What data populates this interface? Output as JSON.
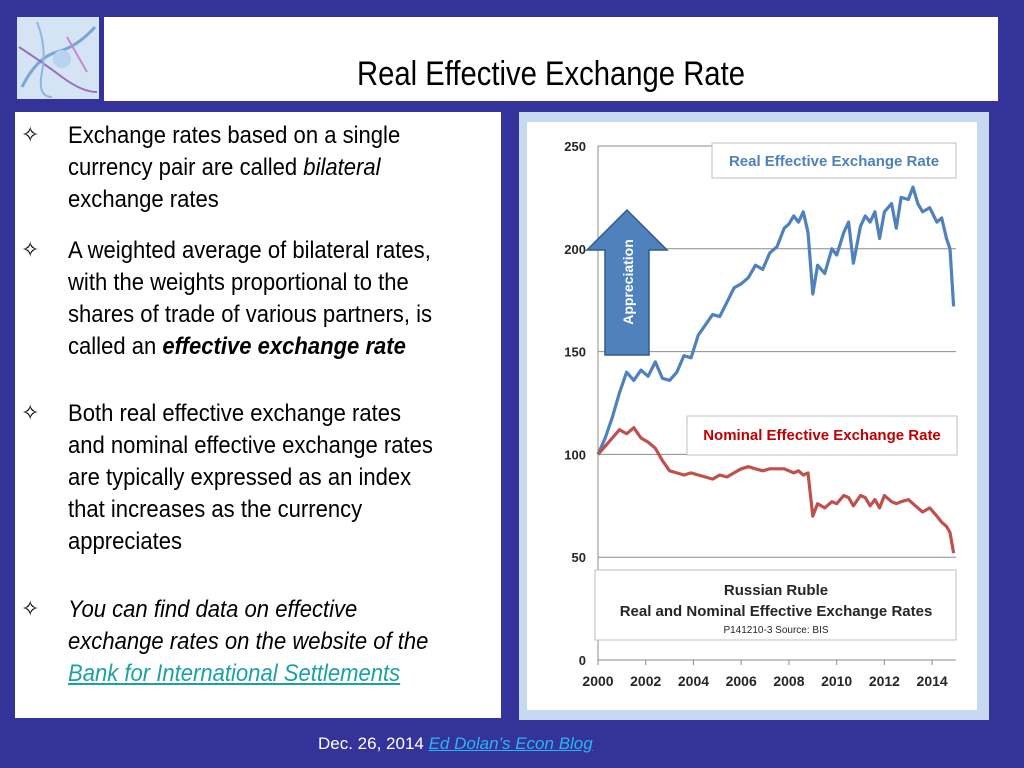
{
  "title": "Real Effective Exchange Rate",
  "bullets": [
    {
      "lines": [
        "Exchange rates based on a single",
        "currency pair are called ",
        "exchange rates"
      ],
      "italic_word": "bilateral"
    },
    {
      "lines": [
        "A weighted average of bilateral rates,",
        "with the weights proportional to the",
        "shares of trade of various partners, is",
        "called an "
      ],
      "bold_italic": "effective exchange rate"
    },
    {
      "lines": [
        "Both real effective exchange rates",
        "and nominal effective exchange rates",
        "are typically expressed as an index",
        "that increases as the currency",
        "appreciates"
      ]
    },
    {
      "lines": [
        "You can find data on effective",
        "exchange rates on the website of the"
      ],
      "link": "Bank for International Settlements"
    }
  ],
  "bullet_symbol": "✧",
  "footer": {
    "date": "Dec. 26, 2014",
    "link": "Ed Dolan’s Econ Blog"
  },
  "chart_data": {
    "type": "line",
    "title": "Russian Ruble",
    "subtitle": "Real and Nominal Effective Exchange Rates",
    "note": "P141210-3 Source: BIS",
    "arrow_label": "Appreciation",
    "ylim": [
      0,
      250
    ],
    "yticks": [
      0,
      50,
      100,
      150,
      200,
      250
    ],
    "xlim": [
      2000,
      2015
    ],
    "xticks": [
      2000,
      2002,
      2004,
      2006,
      2008,
      2010,
      2012,
      2014
    ],
    "grid": "horizontal",
    "series": [
      {
        "name": "Real Effective Exchange Rate",
        "color": "#4f81bd",
        "label_color": "#4f81bd",
        "x": [
          2000.0,
          2000.3,
          2000.6,
          2000.9,
          2001.2,
          2001.5,
          2001.8,
          2002.1,
          2002.4,
          2002.7,
          2003.0,
          2003.3,
          2003.6,
          2003.9,
          2004.2,
          2004.5,
          2004.8,
          2005.1,
          2005.4,
          2005.7,
          2006.0,
          2006.3,
          2006.6,
          2006.9,
          2007.2,
          2007.5,
          2007.8,
          2008.0,
          2008.2,
          2008.4,
          2008.6,
          2008.8,
          2009.0,
          2009.2,
          2009.5,
          2009.8,
          2010.0,
          2010.3,
          2010.5,
          2010.7,
          2011.0,
          2011.2,
          2011.4,
          2011.6,
          2011.8,
          2012.0,
          2012.3,
          2012.5,
          2012.7,
          2013.0,
          2013.2,
          2013.4,
          2013.6,
          2013.9,
          2014.2,
          2014.4,
          2014.6,
          2014.75,
          2014.9
        ],
        "y": [
          100,
          108,
          118,
          130,
          140,
          136,
          141,
          138,
          145,
          137,
          136,
          140,
          148,
          147,
          158,
          163,
          168,
          167,
          174,
          181,
          183,
          186,
          192,
          190,
          198,
          201,
          210,
          212,
          216,
          213,
          218,
          208,
          178,
          192,
          188,
          200,
          197,
          208,
          213,
          193,
          211,
          216,
          213,
          218,
          205,
          218,
          222,
          210,
          225,
          224,
          230,
          222,
          218,
          220,
          213,
          215,
          205,
          200,
          172
        ]
      },
      {
        "name": "Nominal Effective Exchange Rate",
        "color": "#c0504d",
        "label_color": "#c00000",
        "x": [
          2000.0,
          2000.3,
          2000.6,
          2000.9,
          2001.2,
          2001.5,
          2001.8,
          2002.1,
          2002.4,
          2002.7,
          2003.0,
          2003.3,
          2003.6,
          2003.9,
          2004.2,
          2004.5,
          2004.8,
          2005.1,
          2005.4,
          2005.7,
          2006.0,
          2006.3,
          2006.6,
          2006.9,
          2007.2,
          2007.5,
          2007.8,
          2008.0,
          2008.2,
          2008.4,
          2008.6,
          2008.8,
          2009.0,
          2009.2,
          2009.5,
          2009.8,
          2010.0,
          2010.3,
          2010.5,
          2010.7,
          2011.0,
          2011.2,
          2011.4,
          2011.6,
          2011.8,
          2012.0,
          2012.3,
          2012.5,
          2012.7,
          2013.0,
          2013.2,
          2013.4,
          2013.6,
          2013.9,
          2014.2,
          2014.4,
          2014.6,
          2014.75,
          2014.9
        ],
        "y": [
          100,
          104,
          108,
          112,
          110,
          113,
          108,
          106,
          103,
          97,
          92,
          91,
          90,
          91,
          90,
          89,
          88,
          90,
          89,
          91,
          93,
          94,
          93,
          92,
          93,
          93,
          93,
          92,
          91,
          92,
          90,
          91,
          70,
          76,
          74,
          77,
          76,
          80,
          79,
          75,
          80,
          79,
          75,
          78,
          74,
          80,
          77,
          76,
          77,
          78,
          76,
          74,
          72,
          74,
          70,
          67,
          65,
          62,
          52
        ]
      }
    ]
  },
  "colors": {
    "background": "#333399",
    "chart_frame": "#c6d9f1",
    "link": "#1ba1a1",
    "arrow": "#4f81bd"
  }
}
